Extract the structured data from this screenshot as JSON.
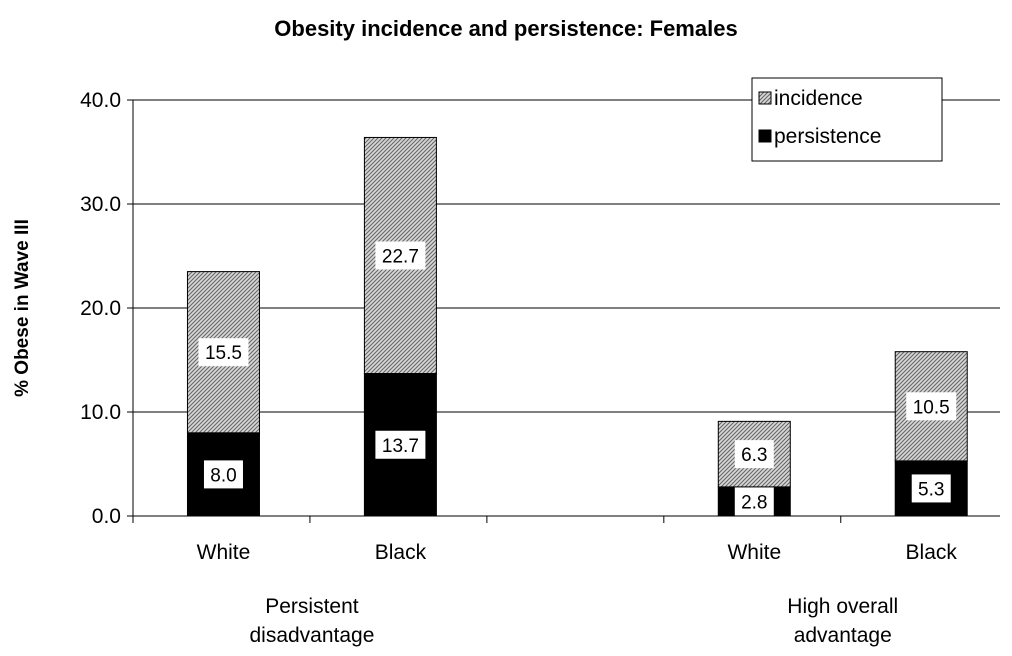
{
  "chart_data": {
    "type": "bar",
    "stacked": true,
    "title": "Obesity incidence and persistence: Females",
    "xlabel": "",
    "ylabel": "% Obese in Wave III",
    "ylim": [
      0,
      40
    ],
    "yticks": [
      "0.0",
      "10.0",
      "20.0",
      "30.0",
      "40.0"
    ],
    "grid": true,
    "legend_position": "top-right",
    "categories": [
      "White",
      "Black",
      "",
      "White",
      "Black"
    ],
    "groups": [
      {
        "label": "Persistent disadvantage",
        "categories": [
          "White",
          "Black"
        ]
      },
      {
        "label": "High overall advantage",
        "categories": [
          "White",
          "Black"
        ]
      }
    ],
    "series": [
      {
        "name": "persistence",
        "values": [
          8.0,
          13.7,
          null,
          2.8,
          5.3
        ],
        "labels": [
          "8.0",
          "13.7",
          "",
          "2.8",
          "5.3"
        ],
        "pattern": "solid",
        "color": "#000000"
      },
      {
        "name": "incidence",
        "values": [
          15.5,
          22.7,
          null,
          6.3,
          10.5
        ],
        "labels": [
          "15.5",
          "22.7",
          "",
          "6.3",
          "10.5"
        ],
        "pattern": "hatched",
        "color": "#b0b0b0"
      }
    ]
  }
}
